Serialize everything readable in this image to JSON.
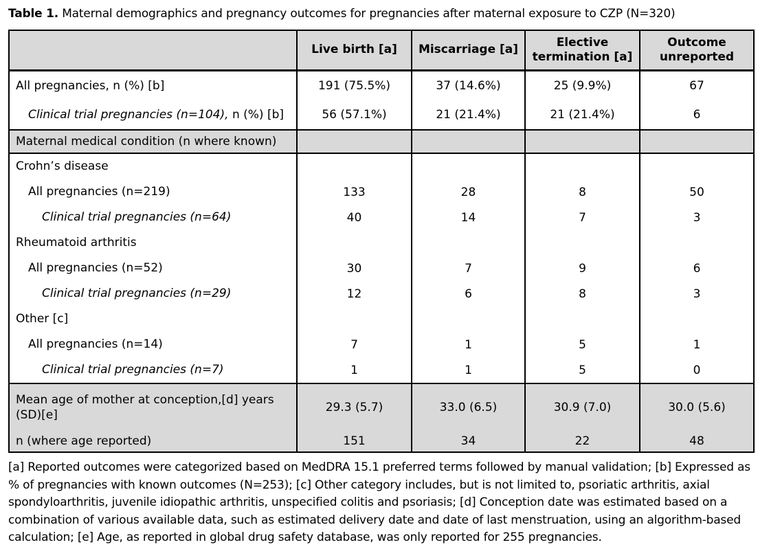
{
  "title": {
    "bold": "Table 1.",
    "rest": " Maternal demographics and pregnancy outcomes for pregnancies after maternal exposure to CZP (N=320)"
  },
  "table": {
    "header": [
      "",
      "Live birth [a]",
      "Miscarriage [a]",
      "Elective termination [a]",
      "Outcome unreported"
    ],
    "rows": [
      {
        "label_italic": "",
        "label": "All pregnancies, n (%) [b]",
        "values": [
          "191 (75.5%)",
          "37 (14.6%)",
          "25 (9.9%)",
          "67"
        ]
      },
      {
        "label_italic": "Clinical trial pregnancies (n=104),",
        "label": " n (%) [b]",
        "values": [
          "56 (57.1%)",
          "21 (21.4%)",
          "21 (21.4%)",
          "6"
        ]
      },
      {
        "label_italic": "",
        "label": "Maternal medical condition (n where known)",
        "values": [
          "",
          "",
          "",
          ""
        ]
      },
      {
        "label_italic": "",
        "label": "Crohn’s disease",
        "values": [
          "",
          "",
          "",
          ""
        ]
      },
      {
        "label_italic": "",
        "label": "All pregnancies (n=219)",
        "values": [
          "133",
          "28",
          "8",
          "50"
        ]
      },
      {
        "label_italic": "Clinical trial pregnancies (n=64)",
        "label": "",
        "values": [
          "40",
          "14",
          "7",
          "3"
        ]
      },
      {
        "label_italic": "",
        "label": "Rheumatoid arthritis",
        "values": [
          "",
          "",
          "",
          ""
        ]
      },
      {
        "label_italic": "",
        "label": "All pregnancies (n=52)",
        "values": [
          "30",
          "7",
          "9",
          "6"
        ]
      },
      {
        "label_italic": "Clinical trial pregnancies (n=29)",
        "label": "",
        "values": [
          "12",
          "6",
          "8",
          "3"
        ]
      },
      {
        "label_italic": "",
        "label": "Other [c]",
        "values": [
          "",
          "",
          "",
          ""
        ]
      },
      {
        "label_italic": "",
        "label": "All pregnancies (n=14)",
        "values": [
          "7",
          "1",
          "5",
          "1"
        ]
      },
      {
        "label_italic": "Clinical trial pregnancies (n=7)",
        "label": "",
        "values": [
          "1",
          "1",
          "5",
          "0"
        ]
      },
      {
        "label_italic": "",
        "label": "Mean age of mother at conception,[d] years (SD)[e]",
        "values": [
          "29.3 (5.7)",
          "33.0 (6.5)",
          "30.9 (7.0)",
          "30.0 (5.6)"
        ]
      },
      {
        "label_italic": "",
        "label": "n (where age reported)",
        "values": [
          "151",
          "34",
          "22",
          "48"
        ]
      }
    ]
  },
  "footnote": "[a] Reported outcomes were categorized based on MedDRA 15.1 preferred terms followed by manual validation; [b] Expressed as % of pregnancies with known outcomes (N=253); [c] Other category includes, but is not limited to, psoriatic arthritis, axial spondyloarthritis, juvenile idiopathic arthritis, unspecified colitis and psoriasis; [d] Conception date was estimated based on a combination of various available data, such as estimated delivery date and date of last menstruation, using an algorithm-based calculation; [e] Age, as reported in global drug safety database, was only reported for 255 pregnancies.",
  "colors": {
    "section_bg": "#d9d9d9",
    "border": "#000000",
    "text": "#000000"
  }
}
